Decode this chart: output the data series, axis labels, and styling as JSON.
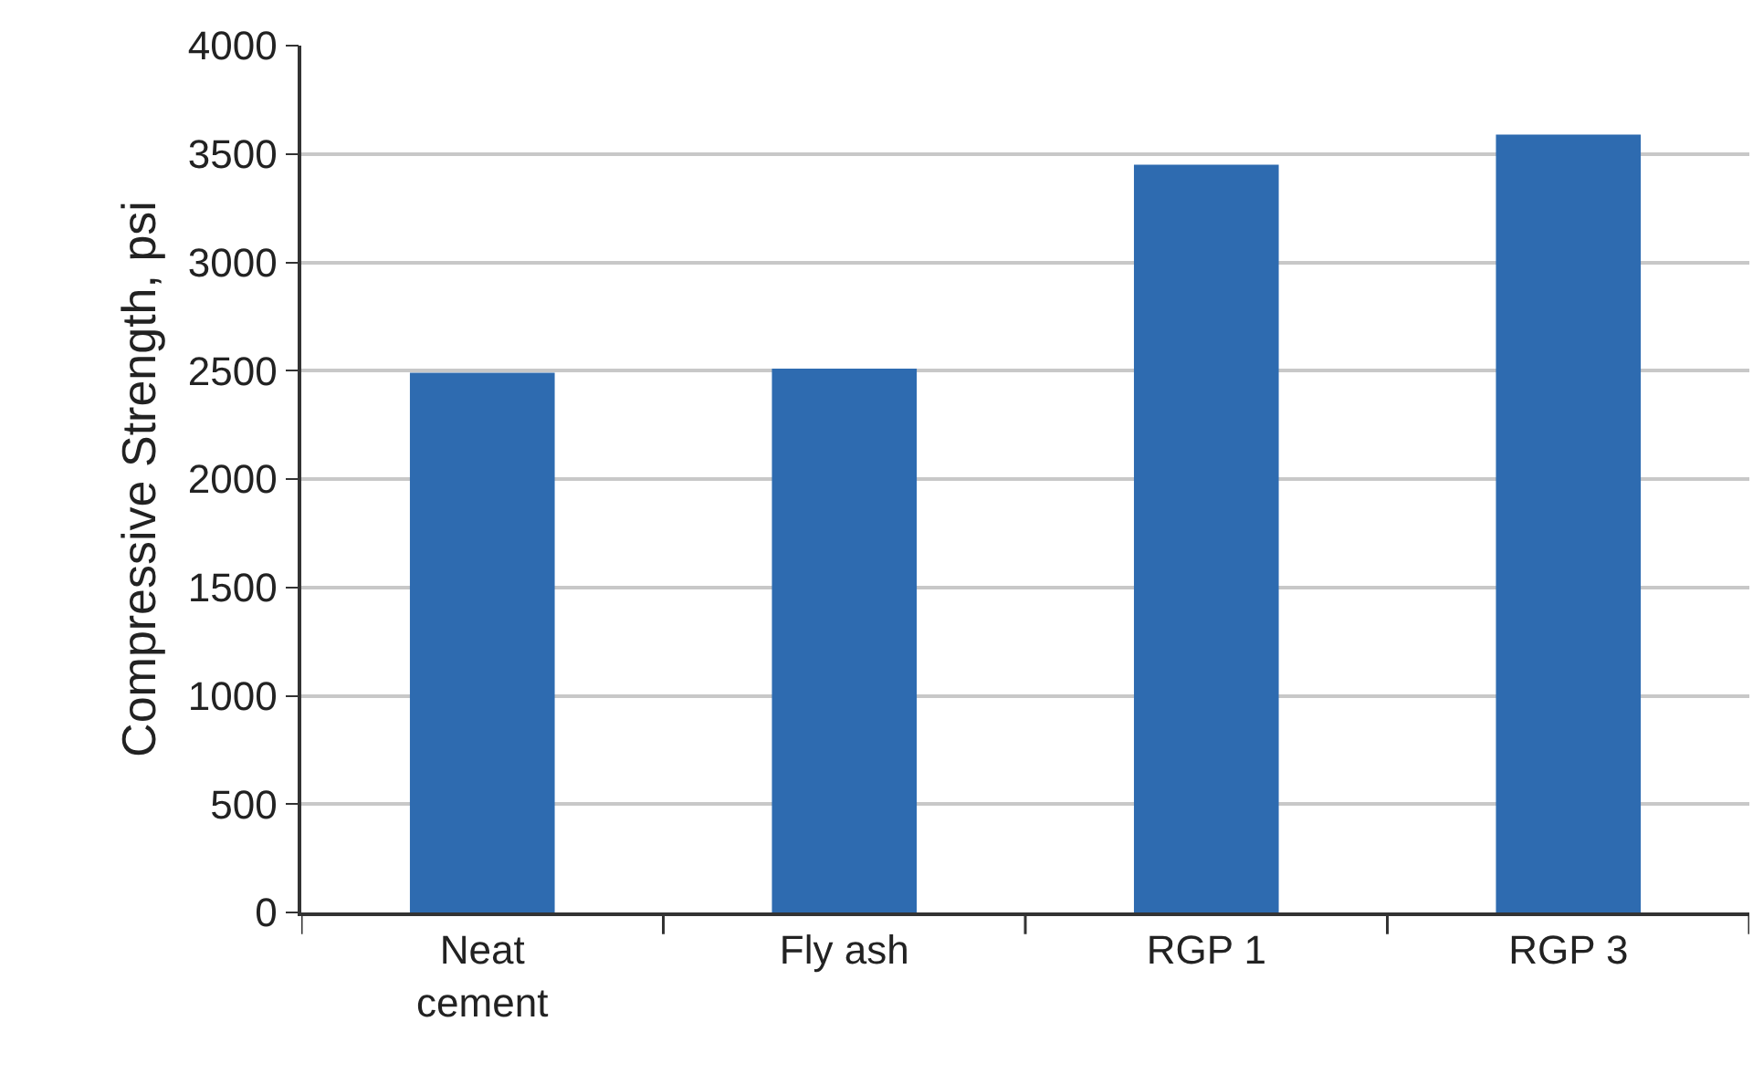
{
  "chart_data": {
    "type": "bar",
    "ylabel": "Compressive Strength, psi",
    "categories": [
      "Neat\ncement",
      "Fly ash",
      "RGP 1",
      "RGP 3"
    ],
    "values": [
      2490,
      2510,
      3450,
      3590
    ],
    "color": "#2e6bb0",
    "ylim": [
      0,
      4000
    ],
    "yticks": [
      0,
      500,
      1000,
      1500,
      2000,
      2500,
      3000,
      3500,
      4000
    ],
    "grid": "y",
    "legend": false
  }
}
